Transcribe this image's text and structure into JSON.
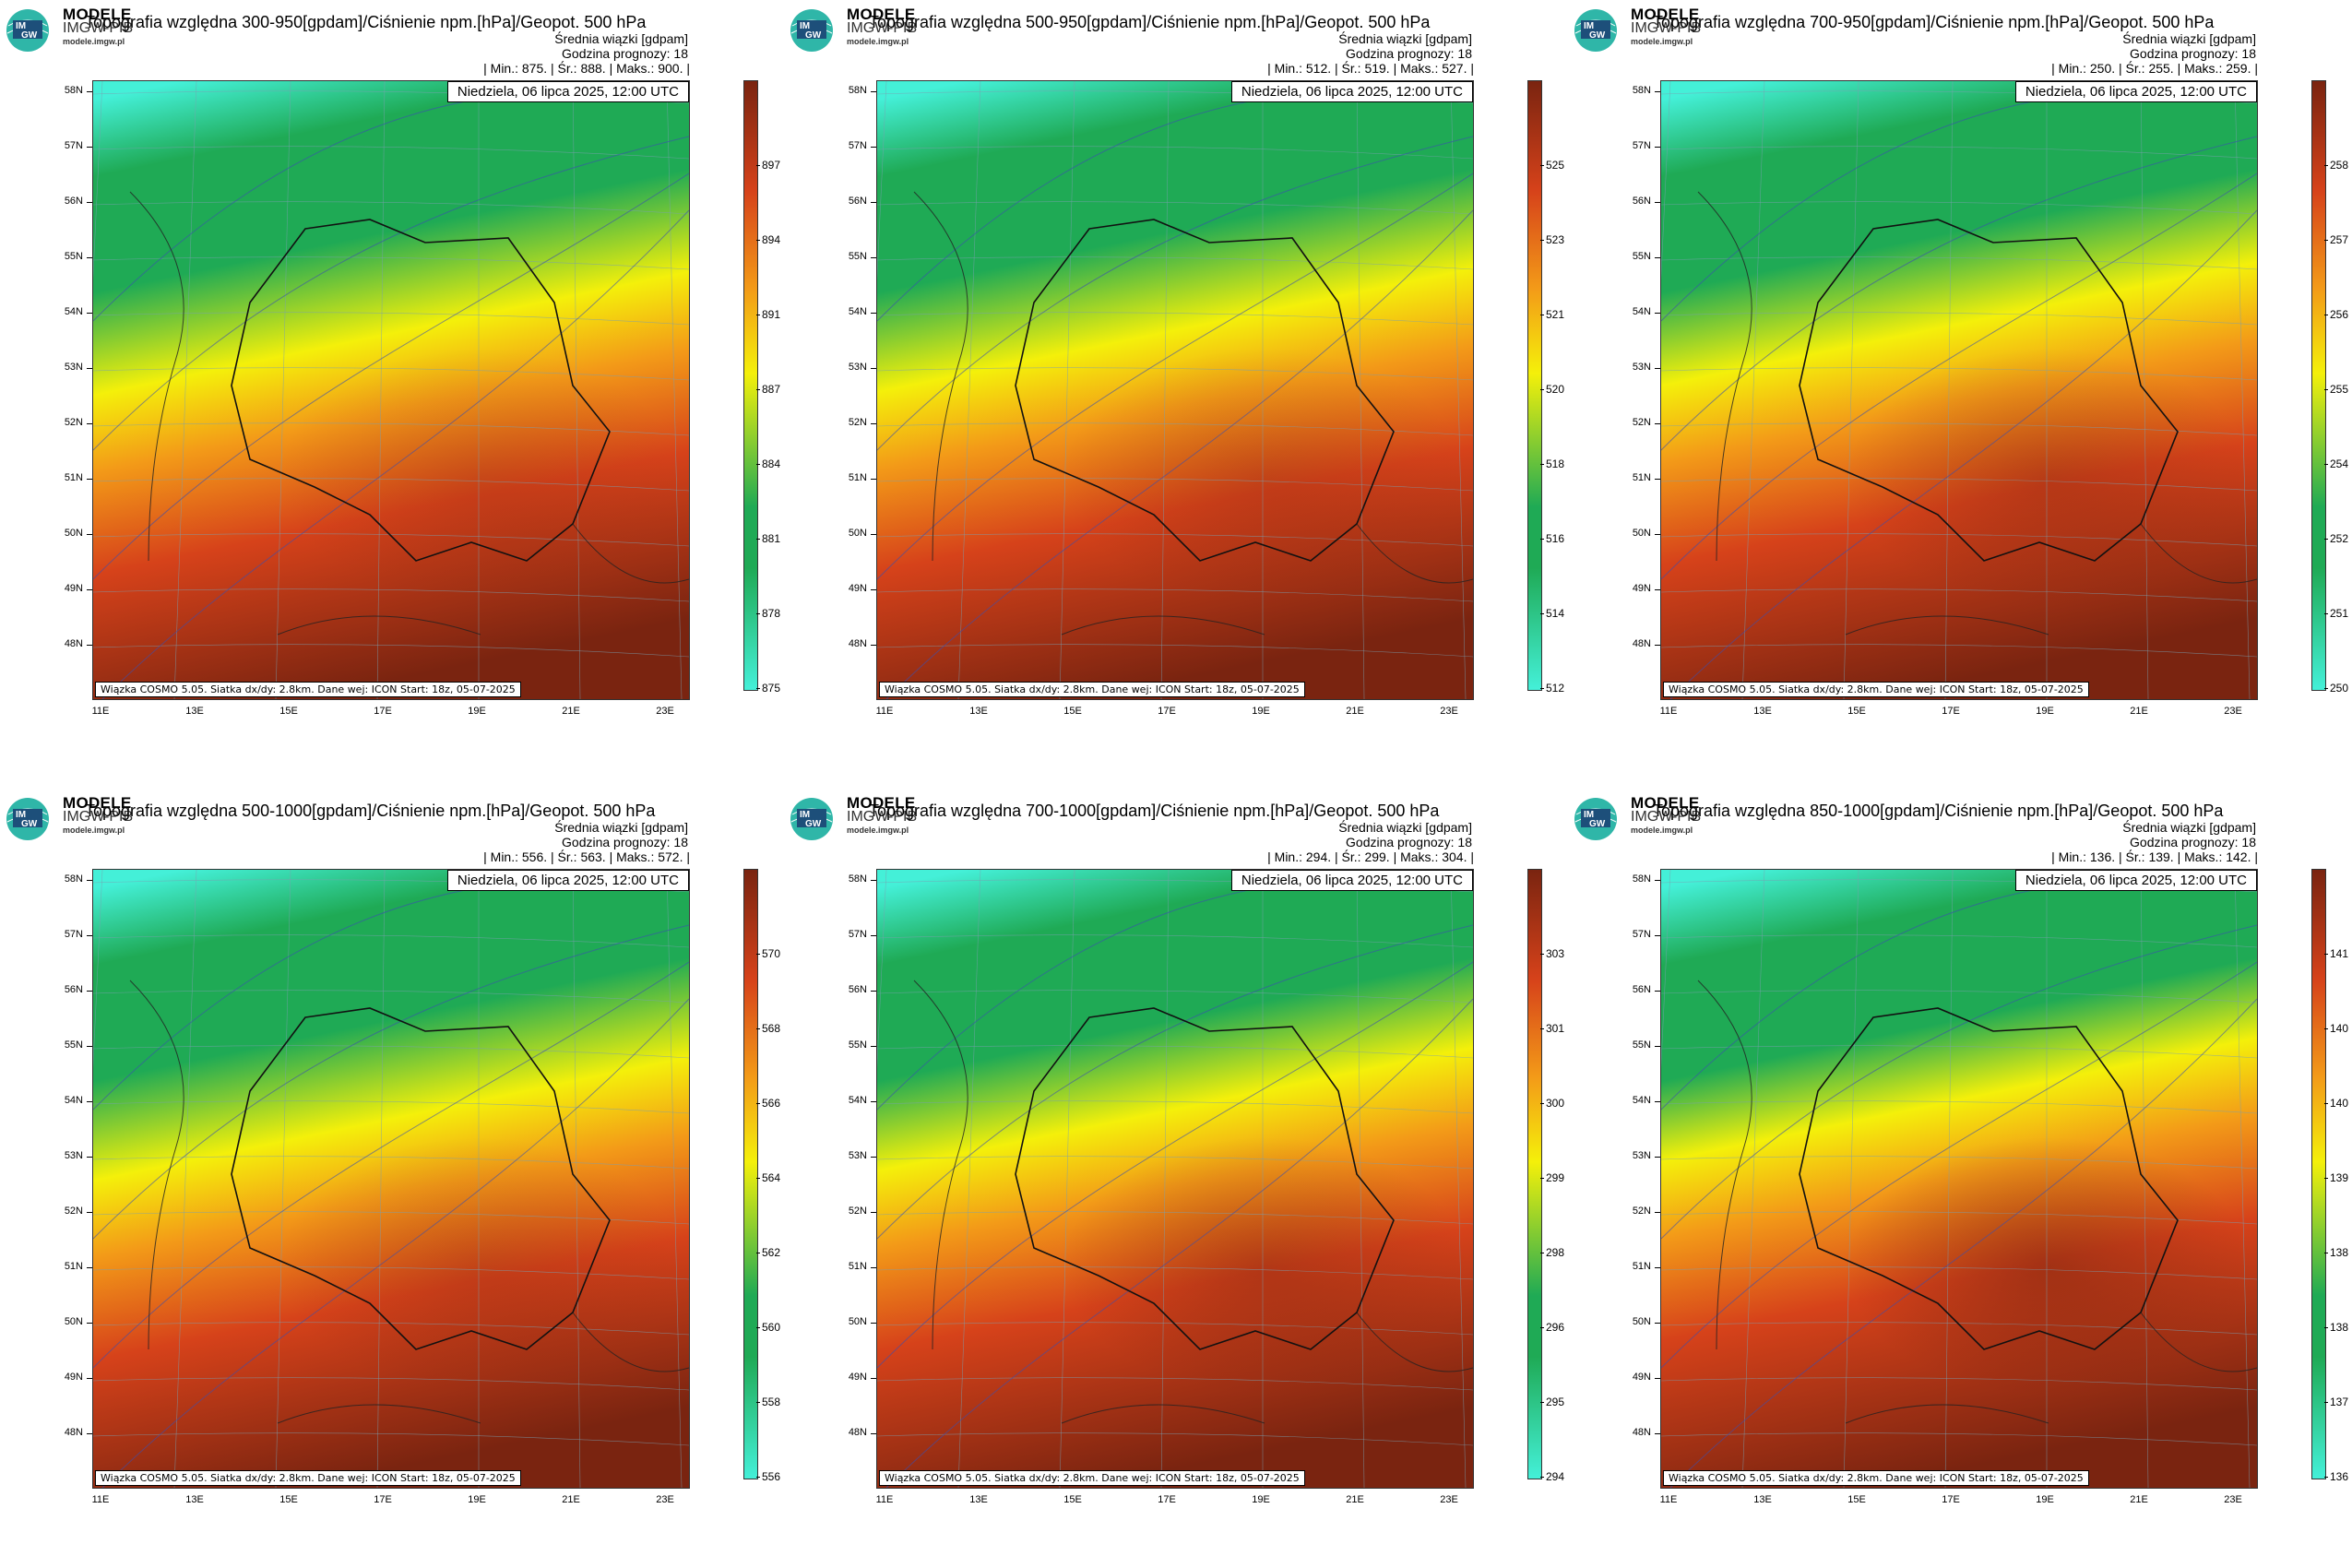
{
  "brand": {
    "main": "MODELE",
    "sub": "IMGW-PIB",
    "url": "modele.imgw.pl",
    "logo_lines": [
      "IM",
      "GW"
    ]
  },
  "common": {
    "subtitle1": "Średnia wiązki [gdpam]",
    "subtitle2": "Godzina prognozy: 18",
    "date": "Niedziela, 06 lipca 2025, 12:00 UTC",
    "footer": "Wiązka COSMO 5.05. Siatka dx/dy: 2.8km. Dane wej: ICON Start: 18z, 05-07-2025",
    "lat_labels": [
      "58N",
      "57N",
      "56N",
      "55N",
      "54N",
      "53N",
      "52N",
      "51N",
      "50N",
      "49N",
      "48N"
    ],
    "lon_labels": [
      "11E",
      "13E",
      "15E",
      "17E",
      "19E",
      "21E",
      "23E"
    ],
    "colors": {
      "cyan": "#44f0d8",
      "green": "#1faa55",
      "yellow": "#f4f00a",
      "orange": "#f39a18",
      "red": "#d6421a",
      "darkred": "#7a2410"
    }
  },
  "panels": [
    {
      "title": "Topografia względna 300-950[gpdam]/Ciśnienie npm.[hPa]/Geopot. 500 hPa",
      "stats": "| Min.: 875. | Śr.: 888. | Maks.: 900. |",
      "colorbar_labels": [
        "897",
        "894",
        "891",
        "887",
        "884",
        "881",
        "878",
        "875"
      ],
      "intensity": 0.0
    },
    {
      "title": "Topografia względna 500-950[gpdam]/Ciśnienie npm.[hPa]/Geopot. 500 hPa",
      "stats": "| Min.: 512. | Śr.: 519. | Maks.: 527. |",
      "colorbar_labels": [
        "525",
        "523",
        "521",
        "520",
        "518",
        "516",
        "514",
        "512"
      ],
      "intensity": 0.05
    },
    {
      "title": "Topografia względna 700-950[gpdam]/Ciśnienie npm.[hPa]/Geopot. 500 hPa",
      "stats": "| Min.: 250. | Śr.: 255. | Maks.: 259. |",
      "colorbar_labels": [
        "258",
        "257",
        "256",
        "255",
        "254",
        "252",
        "251",
        "250"
      ],
      "intensity": 0.15
    },
    {
      "title": "Topografia względna 500-1000[gpdam]/Ciśnienie npm.[hPa]/Geopot. 500 hPa",
      "stats": "| Min.: 556. | Śr.: 563. | Maks.: 572. |",
      "colorbar_labels": [
        "570",
        "568",
        "566",
        "564",
        "562",
        "560",
        "558",
        "556"
      ],
      "intensity": 0.05
    },
    {
      "title": "Topografia względna 700-1000[gpdam]/Ciśnienie npm.[hPa]/Geopot. 500 hPa",
      "stats": "| Min.: 294. | Śr.: 299. | Maks.: 304. |",
      "colorbar_labels": [
        "303",
        "301",
        "300",
        "299",
        "298",
        "296",
        "295",
        "294"
      ],
      "intensity": 0.2
    },
    {
      "title": "Topografia względna 850-1000[gpdam]/Ciśnienie npm.[hPa]/Geopot. 500 hPa",
      "stats": "| Min.: 136. | Śr.: 139. | Maks.: 142. |",
      "colorbar_labels": [
        "141",
        "140",
        "140",
        "139",
        "138",
        "138",
        "137",
        "136"
      ],
      "intensity": 0.35
    }
  ]
}
